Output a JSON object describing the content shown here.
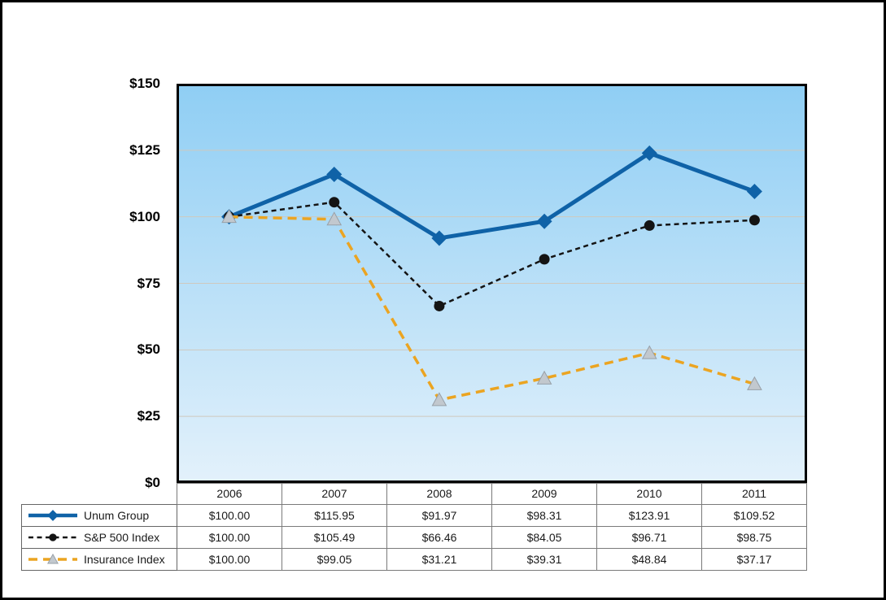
{
  "chart_data": {
    "type": "line",
    "categories": [
      "2006",
      "2007",
      "2008",
      "2009",
      "2010",
      "2011"
    ],
    "series": [
      {
        "name": "Unum Group",
        "values": [
          100.0,
          115.95,
          91.97,
          98.31,
          123.91,
          109.52
        ],
        "color": "#0F62A7",
        "marker": "diamond",
        "dash": "solid",
        "width": 5
      },
      {
        "name": "S&P 500 Index",
        "values": [
          100.0,
          105.49,
          66.46,
          84.05,
          96.71,
          98.75
        ],
        "color": "#141414",
        "marker": "circle",
        "dash": "6 4.5",
        "width": 2.5
      },
      {
        "name": "Insurance Index",
        "values": [
          100.0,
          99.05,
          31.21,
          39.31,
          48.84,
          37.17
        ],
        "color": "#EBA421",
        "marker": "triangle",
        "marker_fill": "#C2C8CE",
        "marker_stroke": "#98A0A8",
        "dash": "11 7",
        "width": 3.5
      }
    ],
    "title": "",
    "xlabel": "",
    "ylabel": "",
    "ylim": [
      0,
      150
    ],
    "y_ticks": [
      "$150",
      "$125",
      "$100",
      "$75",
      "$50",
      "$25",
      "$0"
    ],
    "grid": true,
    "gridline_color": "#CFC9BE",
    "plot_bg_top": "#8FCEF4",
    "plot_bg_bottom": "#E3F1FB",
    "legend_position": "table-left"
  },
  "table": {
    "years": [
      "2006",
      "2007",
      "2008",
      "2009",
      "2010",
      "2011"
    ],
    "rows": [
      {
        "label": "Unum Group",
        "values": [
          "$100.00",
          "$115.95",
          "$91.97",
          "$98.31",
          "$123.91",
          "$109.52"
        ]
      },
      {
        "label": "S&P 500 Index",
        "values": [
          "$100.00",
          "$105.49",
          "$66.46",
          "$84.05",
          "$96.71",
          "$98.75"
        ]
      },
      {
        "label": "Insurance Index",
        "values": [
          "$100.00",
          "$99.05",
          "$31.21",
          "$39.31",
          "$48.84",
          "$37.17"
        ]
      }
    ]
  }
}
